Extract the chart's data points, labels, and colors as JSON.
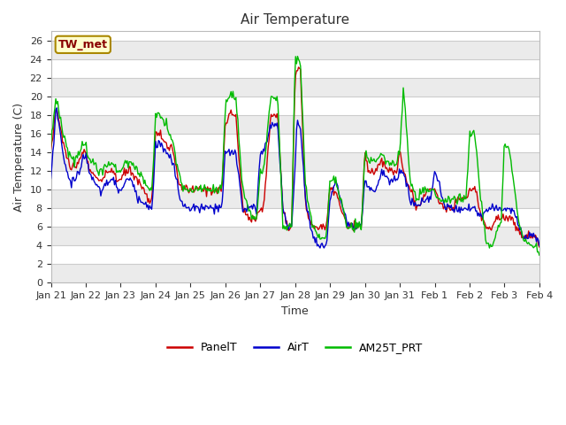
{
  "title": "Air Temperature",
  "xlabel": "Time",
  "ylabel": "Air Temperature (C)",
  "annotation_text": "TW_met",
  "annotation_bg": "#ffffcc",
  "annotation_border": "#aa8800",
  "annotation_text_color": "#880000",
  "legend_labels": [
    "PanelT",
    "AirT",
    "AM25T_PRT"
  ],
  "line_colors": [
    "#cc0000",
    "#0000cc",
    "#00bb00"
  ],
  "ylim": [
    0,
    27
  ],
  "yticks": [
    0,
    2,
    4,
    6,
    8,
    10,
    12,
    14,
    16,
    18,
    20,
    22,
    24,
    26
  ],
  "bg_color": "#ffffff",
  "plot_bg": "#ffffff",
  "grid_color": "#dddddd",
  "xtick_labels": [
    "Jan 21",
    "Jan 22",
    "Jan 23",
    "Jan 24",
    "Jan 25",
    "Jan 26",
    "Jan 27",
    "Jan 28",
    "Jan 29",
    "Jan 30",
    "Jan 31",
    "Feb 1",
    "Feb 2",
    "Feb 3",
    "Feb 4"
  ],
  "n_points": 500,
  "panel_key_x": [
    0,
    0.15,
    0.35,
    0.5,
    0.7,
    0.9,
    1.0,
    1.1,
    1.2,
    1.35,
    1.5,
    1.65,
    1.8,
    1.9,
    2.0,
    2.15,
    2.3,
    2.5,
    2.65,
    2.8,
    2.9,
    3.0,
    3.1,
    3.3,
    3.5,
    3.65,
    3.8,
    3.9,
    4.0,
    4.15,
    4.3,
    4.5,
    4.65,
    4.8,
    4.9,
    5.0,
    5.1,
    5.3,
    5.5,
    5.65,
    5.8,
    5.9,
    6.0,
    6.1,
    6.3,
    6.5,
    6.65,
    6.8,
    6.9,
    7.0,
    7.05,
    7.15,
    7.3,
    7.5,
    7.65,
    7.8,
    7.9,
    8.0,
    8.15,
    8.3,
    8.5,
    8.65,
    8.8,
    8.9,
    9.0,
    9.1,
    9.3,
    9.5,
    9.65,
    9.8,
    9.9,
    10.0,
    10.1,
    10.3,
    10.5,
    10.65,
    10.8,
    10.9,
    11.0,
    11.1,
    11.3,
    11.5,
    11.65,
    11.8,
    11.9,
    12.0,
    12.15,
    12.35,
    12.5,
    12.65,
    12.8,
    12.9,
    13.0,
    13.15,
    13.35,
    13.5,
    13.65,
    13.8,
    13.9,
    14.0
  ],
  "panel_key_y": [
    14,
    19,
    15,
    13,
    12,
    14,
    14,
    12,
    12,
    11,
    11,
    12,
    12,
    11,
    11,
    12,
    12,
    11,
    10,
    9,
    9,
    16,
    16,
    15,
    14,
    11,
    10,
    10,
    10,
    10,
    10,
    10,
    10,
    10,
    10,
    17,
    18,
    18,
    8,
    7,
    7,
    7,
    8,
    8,
    18,
    18,
    8,
    6,
    6,
    22,
    23,
    23,
    8,
    6,
    6,
    6,
    6,
    10,
    10,
    8,
    6,
    6,
    6,
    6,
    14,
    12,
    12,
    13,
    12,
    12,
    12,
    14,
    12,
    10,
    8,
    9,
    10,
    10,
    10,
    9,
    8,
    8,
    9,
    9,
    9,
    10,
    10,
    7,
    6,
    6,
    7,
    7,
    7,
    7,
    6,
    5,
    5,
    5,
    5,
    4
  ],
  "air_key_y": [
    11,
    19,
    14,
    11,
    11,
    13,
    14,
    12,
    11,
    10,
    10,
    11,
    11,
    10,
    10,
    11,
    11,
    9,
    9,
    8,
    8,
    15,
    15,
    14,
    13,
    10,
    8,
    8,
    8,
    8,
    8,
    8,
    8,
    8,
    8,
    14,
    14,
    14,
    8,
    8,
    8,
    8,
    14,
    14,
    17,
    17,
    8,
    6,
    6,
    12,
    17,
    17,
    9,
    5,
    4,
    4,
    4,
    9,
    11,
    9,
    6,
    6,
    6,
    6,
    11,
    10,
    10,
    12,
    11,
    11,
    11,
    12,
    12,
    9,
    8,
    9,
    9,
    9,
    12,
    11,
    8,
    8,
    8,
    8,
    8,
    8,
    8,
    7,
    8,
    8,
    8,
    8,
    8,
    8,
    7,
    5,
    5,
    5,
    5,
    4
  ],
  "am25_key_y": [
    15,
    20,
    16,
    14,
    13,
    15,
    15,
    13,
    13,
    12,
    12,
    13,
    13,
    12,
    12,
    13,
    13,
    12,
    11,
    10,
    10,
    18,
    18,
    17,
    15,
    12,
    10,
    10,
    10,
    10,
    10,
    10,
    10,
    10,
    10,
    19,
    20,
    20,
    10,
    8,
    7,
    7,
    12,
    12,
    20,
    20,
    6,
    6,
    6,
    24,
    24,
    24,
    10,
    6,
    5,
    5,
    5,
    11,
    11,
    9,
    6,
    6,
    6,
    6,
    14,
    13,
    13,
    14,
    13,
    13,
    13,
    14,
    21,
    11,
    9,
    10,
    10,
    10,
    10,
    9,
    9,
    9,
    9,
    9,
    9,
    16,
    16,
    8,
    4,
    4,
    6,
    6,
    15,
    14,
    8,
    5,
    4,
    4,
    4,
    3
  ]
}
